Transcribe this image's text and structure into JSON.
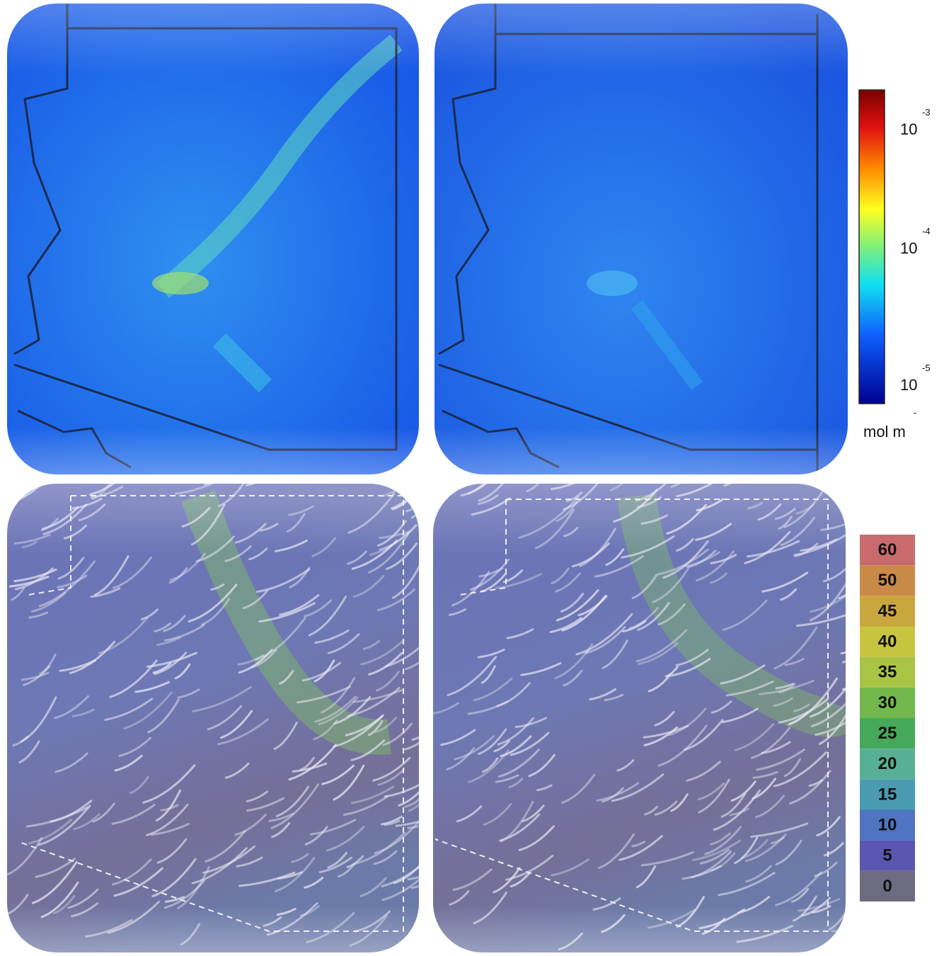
{
  "top_colorbar": {
    "labels": [
      {
        "base": "10",
        "exponent": "-3"
      },
      {
        "base": "10",
        "exponent": "-4"
      },
      {
        "base": "10",
        "exponent": "-5"
      }
    ],
    "unit": "mol m",
    "unit_exponent": "-"
  },
  "bottom_legend": {
    "labels": [
      60,
      50,
      45,
      40,
      35,
      30,
      25,
      20,
      15,
      10,
      5,
      0
    ]
  }
}
